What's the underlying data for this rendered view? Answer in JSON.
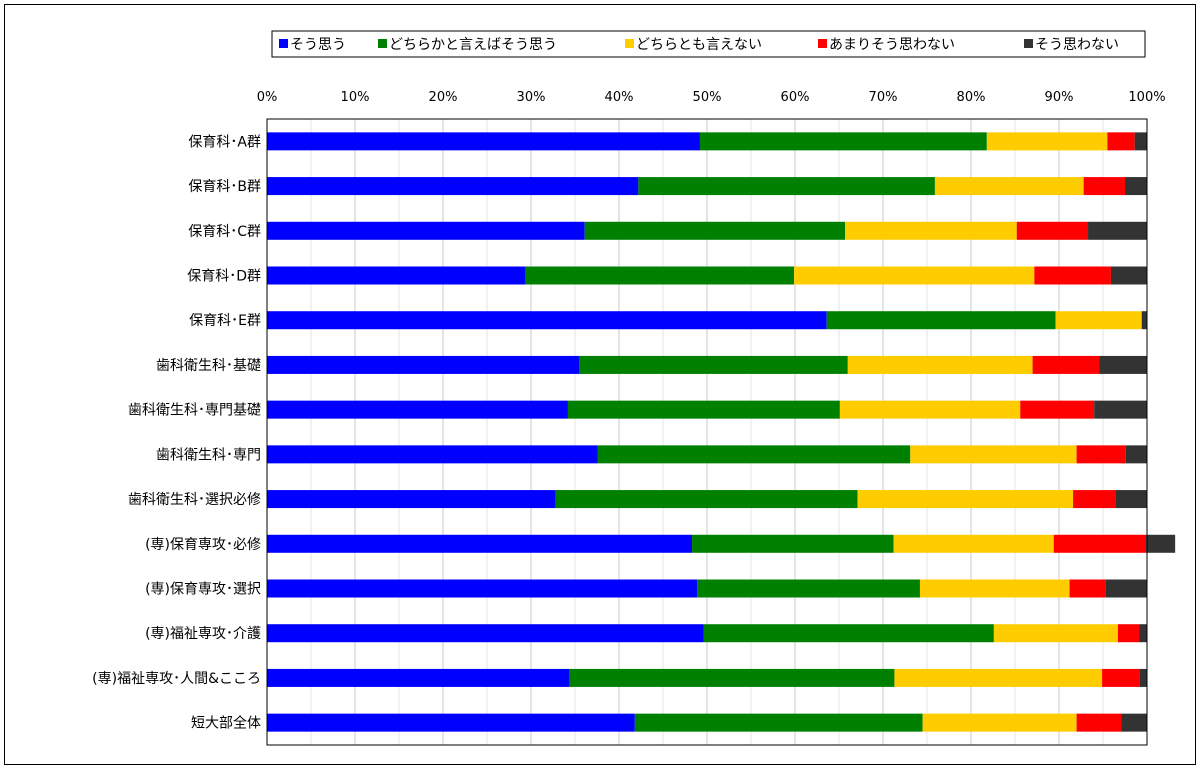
{
  "chart_data": {
    "type": "bar",
    "orientation": "horizontal",
    "stacked": true,
    "percent": true,
    "xlim": [
      0,
      100
    ],
    "x_ticks": [
      "0%",
      "10%",
      "20%",
      "30%",
      "40%",
      "50%",
      "60%",
      "70%",
      "80%",
      "90%",
      "100%"
    ],
    "grid": true,
    "legend_position": "top",
    "categories": [
      "保育科･A群",
      "保育科･B群",
      "保育科･C群",
      "保育科･D群",
      "保育科･E群",
      "歯科衛生科･基礎",
      "歯科衛生科･専門基礎",
      "歯科衛生科･専門",
      "歯科衛生科･選択必修",
      "(専)保育専攻･必修",
      "(専)保育専攻･選択",
      "(専)福祉専攻･介護",
      "(専)福祉専攻･人間&こころ",
      "短大部全体"
    ],
    "series": [
      {
        "name": "そう思う",
        "color": "#0000ff",
        "values": [
          49.2,
          42.2,
          36.1,
          29.4,
          63.6,
          35.5,
          34.2,
          37.6,
          32.8,
          48.3,
          48.9,
          49.6,
          34.4,
          41.8
        ]
      },
      {
        "name": "どちらかと言えばそう思う",
        "color": "#008000",
        "values": [
          32.6,
          33.7,
          29.6,
          30.5,
          26.0,
          30.5,
          30.9,
          35.5,
          34.3,
          22.9,
          25.3,
          33.0,
          36.9,
          32.7
        ]
      },
      {
        "name": "どちらとも言えない",
        "color": "#ffcc00",
        "values": [
          13.7,
          16.9,
          19.5,
          27.3,
          9.8,
          21.0,
          20.5,
          18.9,
          24.5,
          18.2,
          17.0,
          14.1,
          23.6,
          17.5
        ]
      },
      {
        "name": "あまりそう思わない",
        "color": "#ff0000",
        "values": [
          3.1,
          4.7,
          8.1,
          8.7,
          0.0,
          7.6,
          8.4,
          5.6,
          4.8,
          10.5,
          4.1,
          2.4,
          4.3,
          5.1
        ]
      },
      {
        "name": "そう思わない",
        "color": "#333333",
        "values": [
          1.4,
          2.5,
          6.7,
          4.1,
          0.6,
          5.4,
          6.0,
          2.4,
          3.6,
          3.3,
          4.7,
          0.9,
          0.8,
          2.9
        ]
      }
    ]
  }
}
